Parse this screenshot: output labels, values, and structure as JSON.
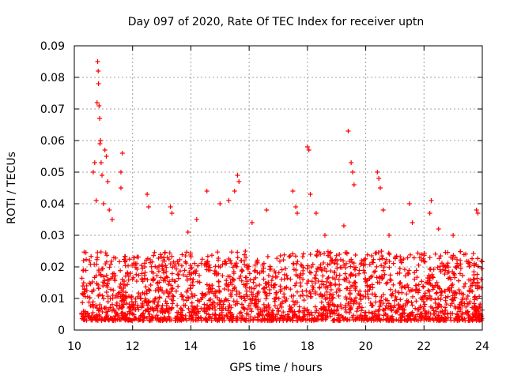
{
  "chart_data": {
    "type": "scatter",
    "title": "Day 097 of 2020, Rate Of TEC Index for receiver uptn",
    "xlabel": "GPS time / hours",
    "ylabel": "ROTI / TECUs",
    "xlim": [
      10,
      24
    ],
    "ylim": [
      0,
      0.09
    ],
    "x_ticks": [
      10,
      12,
      14,
      16,
      18,
      20,
      22,
      24
    ],
    "y_ticks": [
      0,
      0.01,
      0.02,
      0.03,
      0.04,
      0.05,
      0.06,
      0.07,
      0.08,
      0.09
    ],
    "x_tick_labels": [
      "10",
      "12",
      "14",
      "16",
      "18",
      "20",
      "22",
      "24"
    ],
    "y_tick_labels": [
      "0",
      "0.01",
      "0.02",
      "0.03",
      "0.04",
      "0.05",
      "0.06",
      "0.07",
      "0.08",
      "0.09"
    ],
    "grid": true,
    "marker": "+",
    "color": "#ff0000",
    "series": [
      {
        "name": "ROTI",
        "points": [
          [
            10.65,
            0.05
          ],
          [
            10.7,
            0.053
          ],
          [
            10.75,
            0.041
          ],
          [
            10.78,
            0.072
          ],
          [
            10.8,
            0.085
          ],
          [
            10.82,
            0.082
          ],
          [
            10.83,
            0.078
          ],
          [
            10.85,
            0.071
          ],
          [
            10.87,
            0.067
          ],
          [
            10.88,
            0.059
          ],
          [
            10.9,
            0.06
          ],
          [
            10.92,
            0.053
          ],
          [
            10.95,
            0.049
          ],
          [
            11.0,
            0.04
          ],
          [
            11.05,
            0.057
          ],
          [
            11.1,
            0.055
          ],
          [
            11.15,
            0.047
          ],
          [
            11.2,
            0.038
          ],
          [
            11.3,
            0.035
          ],
          [
            11.6,
            0.05
          ],
          [
            11.65,
            0.056
          ],
          [
            11.6,
            0.045
          ],
          [
            12.5,
            0.043
          ],
          [
            12.55,
            0.039
          ],
          [
            13.3,
            0.039
          ],
          [
            13.35,
            0.037
          ],
          [
            13.9,
            0.031
          ],
          [
            14.2,
            0.035
          ],
          [
            14.55,
            0.044
          ],
          [
            15.0,
            0.04
          ],
          [
            15.3,
            0.041
          ],
          [
            15.5,
            0.044
          ],
          [
            15.6,
            0.049
          ],
          [
            15.65,
            0.047
          ],
          [
            16.1,
            0.034
          ],
          [
            16.6,
            0.038
          ],
          [
            17.5,
            0.044
          ],
          [
            17.6,
            0.039
          ],
          [
            17.65,
            0.037
          ],
          [
            18.0,
            0.058
          ],
          [
            18.05,
            0.057
          ],
          [
            18.1,
            0.043
          ],
          [
            18.3,
            0.037
          ],
          [
            18.6,
            0.03
          ],
          [
            19.25,
            0.033
          ],
          [
            19.4,
            0.063
          ],
          [
            19.5,
            0.053
          ],
          [
            19.55,
            0.05
          ],
          [
            19.6,
            0.046
          ],
          [
            20.4,
            0.05
          ],
          [
            20.45,
            0.048
          ],
          [
            20.5,
            0.045
          ],
          [
            20.6,
            0.038
          ],
          [
            20.8,
            0.03
          ],
          [
            21.5,
            0.04
          ],
          [
            21.6,
            0.034
          ],
          [
            22.2,
            0.037
          ],
          [
            22.25,
            0.041
          ],
          [
            22.5,
            0.032
          ],
          [
            23.0,
            0.03
          ],
          [
            23.8,
            0.038
          ],
          [
            23.85,
            0.037
          ]
        ]
      }
    ],
    "baseline_band": {
      "description": "dense cloud of points",
      "x_range": [
        10.25,
        24.0
      ],
      "y_min": 0.003,
      "y_max": 0.025
    }
  }
}
